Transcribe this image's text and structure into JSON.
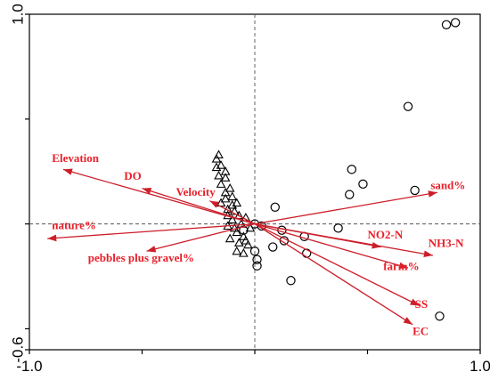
{
  "chart_data": {
    "type": "scatter",
    "title": "",
    "xlabel": "",
    "ylabel": "",
    "xlim": [
      -1.0,
      1.0
    ],
    "ylim": [
      -0.6,
      1.0
    ],
    "x_ticks": [
      {
        "value": -1.0,
        "label": "-1.0"
      },
      {
        "value": 1.0,
        "label": "1.0"
      }
    ],
    "y_ticks": [
      {
        "value": -0.6,
        "label": "-0.6"
      },
      {
        "value": 1.0,
        "label": "1.0"
      }
    ],
    "minor_x_ticks": [
      -0.5,
      0.0,
      0.5
    ],
    "minor_y_ticks": [
      -0.5,
      0.0,
      0.5
    ],
    "zero_lines": true,
    "grid": false,
    "arrows": [
      {
        "label": "Elevation",
        "x": -0.85,
        "y": 0.26,
        "lx": -0.9,
        "ly": 0.295
      },
      {
        "label": "DO",
        "x": -0.5,
        "y": 0.17,
        "lx": -0.58,
        "ly": 0.21
      },
      {
        "label": "Velocity",
        "x": -0.2,
        "y": 0.11,
        "lx": -0.35,
        "ly": 0.135
      },
      {
        "label": "nature%",
        "x": -0.92,
        "y": -0.07,
        "lx": -0.9,
        "ly": -0.025
      },
      {
        "label": "pebbles plus gravel%",
        "x": -0.48,
        "y": -0.13,
        "lx": -0.74,
        "ly": -0.18
      },
      {
        "label": "sand%",
        "x": 0.81,
        "y": 0.15,
        "lx": 0.78,
        "ly": 0.165
      },
      {
        "label": "NO2-N",
        "x": 0.56,
        "y": -0.11,
        "lx": 0.5,
        "ly": -0.07
      },
      {
        "label": "NH3-N",
        "x": 0.79,
        "y": -0.15,
        "lx": 0.77,
        "ly": -0.11
      },
      {
        "label": "farm%",
        "x": 0.68,
        "y": -0.21,
        "lx": 0.57,
        "ly": -0.22
      },
      {
        "label": "SS",
        "x": 0.73,
        "y": -0.39,
        "lx": 0.71,
        "ly": -0.4
      },
      {
        "label": "EC",
        "x": 0.7,
        "y": -0.48,
        "lx": 0.7,
        "ly": -0.53
      }
    ],
    "series": [
      {
        "marker": "circle",
        "points": [
          [
            0.85,
            0.95
          ],
          [
            0.89,
            0.96
          ],
          [
            0.68,
            0.56
          ],
          [
            0.43,
            0.26
          ],
          [
            0.48,
            0.19
          ],
          [
            0.42,
            0.14
          ],
          [
            0.71,
            0.16
          ],
          [
            0.09,
            0.08
          ],
          [
            0.37,
            -0.02
          ],
          [
            -0.05,
            -0.03
          ],
          [
            0.0,
            0.0
          ],
          [
            0.03,
            -0.01
          ],
          [
            0.12,
            -0.03
          ],
          [
            0.13,
            -0.08
          ],
          [
            0.22,
            -0.06
          ],
          [
            0.08,
            -0.11
          ],
          [
            0.23,
            -0.14
          ],
          [
            0.0,
            -0.13
          ],
          [
            0.01,
            -0.17
          ],
          [
            0.01,
            -0.2
          ],
          [
            0.16,
            -0.27
          ],
          [
            0.82,
            -0.44
          ]
        ]
      },
      {
        "marker": "triangle",
        "points": [
          [
            -0.16,
            0.33
          ],
          [
            -0.17,
            0.31
          ],
          [
            -0.15,
            0.28
          ],
          [
            -0.17,
            0.27
          ],
          [
            -0.13,
            0.25
          ],
          [
            -0.16,
            0.23
          ],
          [
            -0.13,
            0.22
          ],
          [
            -0.15,
            0.19
          ],
          [
            -0.11,
            0.17
          ],
          [
            -0.13,
            0.15
          ],
          [
            -0.1,
            0.13
          ],
          [
            -0.08,
            0.1
          ],
          [
            -0.15,
            0.1
          ],
          [
            -0.12,
            0.07
          ],
          [
            -0.09,
            0.06
          ],
          [
            -0.07,
            0.04
          ],
          [
            -0.04,
            0.03
          ],
          [
            -0.1,
            0.02
          ],
          [
            -0.06,
            0.0
          ],
          [
            -0.12,
            -0.01
          ],
          [
            -0.02,
            -0.02
          ],
          [
            -0.08,
            -0.04
          ],
          [
            -0.05,
            -0.06
          ],
          [
            -0.11,
            -0.07
          ],
          [
            -0.07,
            -0.09
          ],
          [
            -0.03,
            -0.1
          ],
          [
            -0.08,
            -0.13
          ],
          [
            -0.05,
            -0.14
          ],
          [
            -0.12,
            0.04
          ],
          [
            -0.09,
            -0.02
          ],
          [
            -0.04,
            -0.08
          ],
          [
            -0.13,
            0.12
          ],
          [
            -0.1,
            0.09
          ]
        ]
      }
    ]
  }
}
